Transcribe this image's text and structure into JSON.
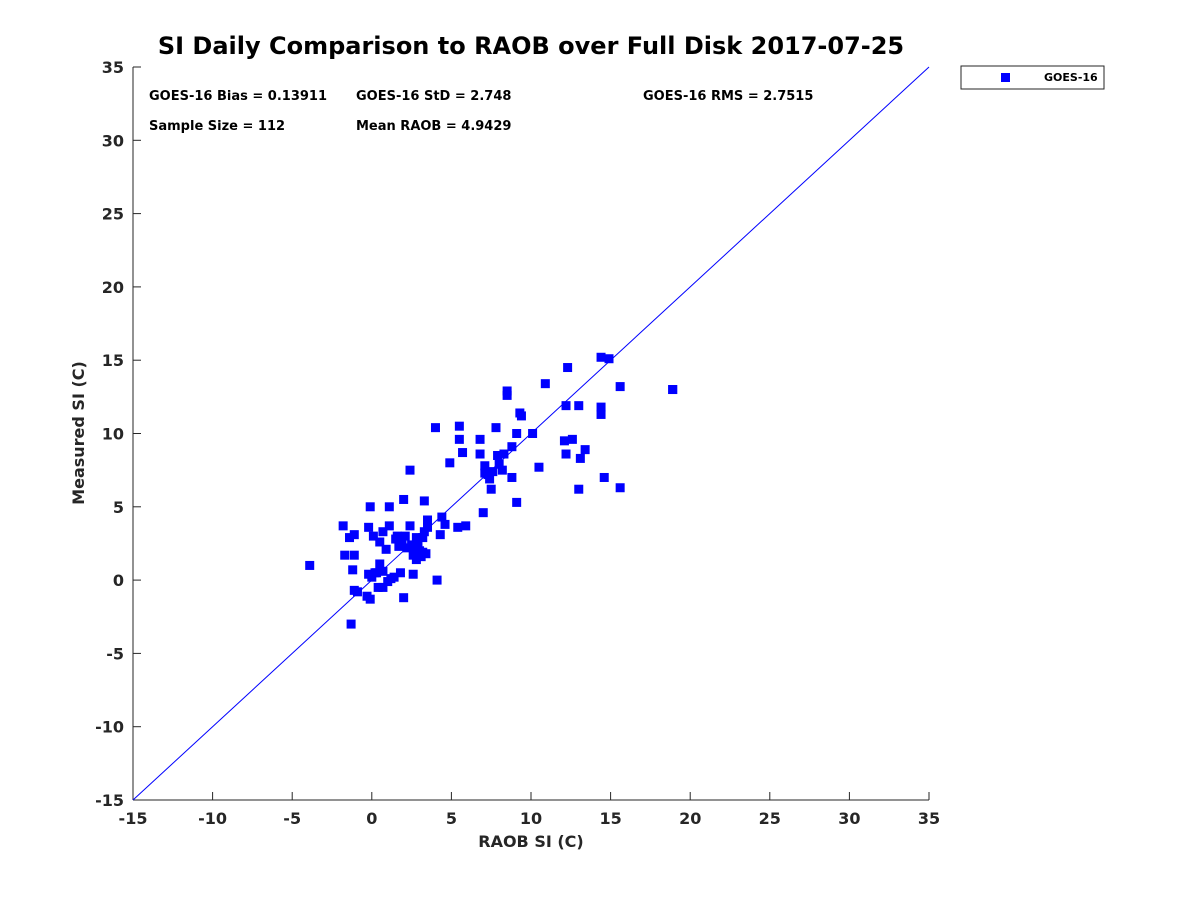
{
  "chart_data": {
    "type": "scatter",
    "title": "SI Daily Comparison to RAOB over Full Disk 2017-07-25",
    "xlabel": "RAOB SI (C)",
    "ylabel": "Measured SI (C)",
    "xlim": [
      -15,
      35
    ],
    "ylim": [
      -15,
      35
    ],
    "xticks": [
      "-15",
      "-10",
      "-5",
      "0",
      "5",
      "10",
      "15",
      "20",
      "25",
      "30",
      "35"
    ],
    "yticks": [
      "-15",
      "-10",
      "-5",
      "0",
      "5",
      "10",
      "15",
      "20",
      "25",
      "30",
      "35"
    ],
    "grid": false,
    "legend_position": "top-right (outside plot)",
    "legend": [
      "GOES-16"
    ],
    "marker_color": "#0000ff",
    "line_color": "#0000ff",
    "reference_line": {
      "label": "1:1",
      "from": [
        -15,
        -15
      ],
      "to": [
        35,
        35
      ]
    },
    "stats": {
      "bias": "GOES-16 Bias = 0.13911",
      "std": "GOES-16 StD = 2.748",
      "rms": "GOES-16 RMS = 2.7515",
      "sample": "Sample Size = 112",
      "mean": "Mean RAOB = 4.9429"
    },
    "series": [
      {
        "name": "GOES-16",
        "points": [
          [
            -3.9,
            1.0
          ],
          [
            -1.8,
            3.7
          ],
          [
            -1.7,
            1.7
          ],
          [
            -1.4,
            2.9
          ],
          [
            -1.3,
            -3.0
          ],
          [
            -1.2,
            0.7
          ],
          [
            -1.1,
            3.1
          ],
          [
            -1.1,
            1.7
          ],
          [
            -1.1,
            -0.7
          ],
          [
            -0.9,
            -0.8
          ],
          [
            -0.3,
            -1.1
          ],
          [
            -0.2,
            0.4
          ],
          [
            -0.2,
            3.6
          ],
          [
            -0.1,
            5.0
          ],
          [
            -0.1,
            -1.3
          ],
          [
            0.0,
            0.2
          ],
          [
            0.1,
            3.0
          ],
          [
            0.2,
            0.5
          ],
          [
            0.3,
            0.5
          ],
          [
            0.4,
            -0.5
          ],
          [
            0.5,
            2.6
          ],
          [
            0.5,
            1.1
          ],
          [
            0.7,
            -0.5
          ],
          [
            0.7,
            0.6
          ],
          [
            0.7,
            3.3
          ],
          [
            0.9,
            2.1
          ],
          [
            1.0,
            -0.1
          ],
          [
            1.1,
            3.7
          ],
          [
            1.1,
            5.0
          ],
          [
            1.2,
            0.1
          ],
          [
            1.4,
            0.2
          ],
          [
            1.5,
            2.8
          ],
          [
            1.6,
            3.0
          ],
          [
            1.7,
            2.3
          ],
          [
            1.8,
            0.5
          ],
          [
            1.9,
            2.6
          ],
          [
            2.0,
            5.5
          ],
          [
            2.0,
            -1.2
          ],
          [
            2.1,
            3.0
          ],
          [
            2.2,
            2.2
          ],
          [
            2.4,
            7.5
          ],
          [
            2.4,
            3.7
          ],
          [
            2.5,
            2.4
          ],
          [
            2.6,
            1.7
          ],
          [
            2.6,
            0.4
          ],
          [
            2.7,
            2.2
          ],
          [
            2.8,
            2.9
          ],
          [
            2.8,
            1.4
          ],
          [
            2.9,
            2.3
          ],
          [
            3.0,
            2.0
          ],
          [
            3.1,
            1.6
          ],
          [
            3.2,
            1.9
          ],
          [
            3.2,
            2.9
          ],
          [
            3.3,
            5.4
          ],
          [
            3.3,
            3.3
          ],
          [
            3.4,
            1.8
          ],
          [
            3.5,
            4.1
          ],
          [
            3.5,
            3.6
          ],
          [
            4.0,
            10.4
          ],
          [
            4.1,
            0.0
          ],
          [
            4.3,
            3.1
          ],
          [
            4.4,
            4.3
          ],
          [
            4.6,
            3.8
          ],
          [
            4.9,
            8.0
          ],
          [
            5.4,
            3.6
          ],
          [
            5.5,
            10.5
          ],
          [
            5.5,
            9.6
          ],
          [
            5.7,
            8.7
          ],
          [
            5.9,
            3.7
          ],
          [
            6.8,
            9.6
          ],
          [
            6.8,
            8.6
          ],
          [
            7.0,
            4.6
          ],
          [
            7.1,
            7.8
          ],
          [
            7.1,
            7.3
          ],
          [
            7.3,
            7.2
          ],
          [
            7.4,
            6.9
          ],
          [
            7.5,
            6.2
          ],
          [
            7.6,
            7.4
          ],
          [
            7.8,
            10.4
          ],
          [
            7.9,
            8.5
          ],
          [
            8.0,
            7.9
          ],
          [
            8.2,
            7.5
          ],
          [
            8.3,
            8.6
          ],
          [
            8.5,
            12.9
          ],
          [
            8.5,
            12.6
          ],
          [
            8.8,
            9.1
          ],
          [
            8.8,
            7.0
          ],
          [
            9.1,
            10.0
          ],
          [
            9.1,
            5.3
          ],
          [
            9.3,
            11.4
          ],
          [
            9.4,
            11.2
          ],
          [
            10.1,
            10.0
          ],
          [
            10.5,
            7.7
          ],
          [
            10.9,
            13.4
          ],
          [
            12.1,
            9.5
          ],
          [
            12.2,
            11.9
          ],
          [
            12.2,
            8.6
          ],
          [
            12.3,
            14.5
          ],
          [
            12.6,
            9.6
          ],
          [
            13.0,
            11.9
          ],
          [
            13.0,
            6.2
          ],
          [
            13.1,
            8.3
          ],
          [
            13.4,
            8.9
          ],
          [
            14.4,
            15.2
          ],
          [
            14.4,
            11.8
          ],
          [
            14.4,
            11.3
          ],
          [
            14.6,
            7.0
          ],
          [
            14.9,
            15.1
          ],
          [
            15.6,
            13.2
          ],
          [
            15.6,
            6.3
          ],
          [
            18.9,
            13.0
          ],
          [
            18.9,
            13.0
          ]
        ]
      }
    ]
  }
}
